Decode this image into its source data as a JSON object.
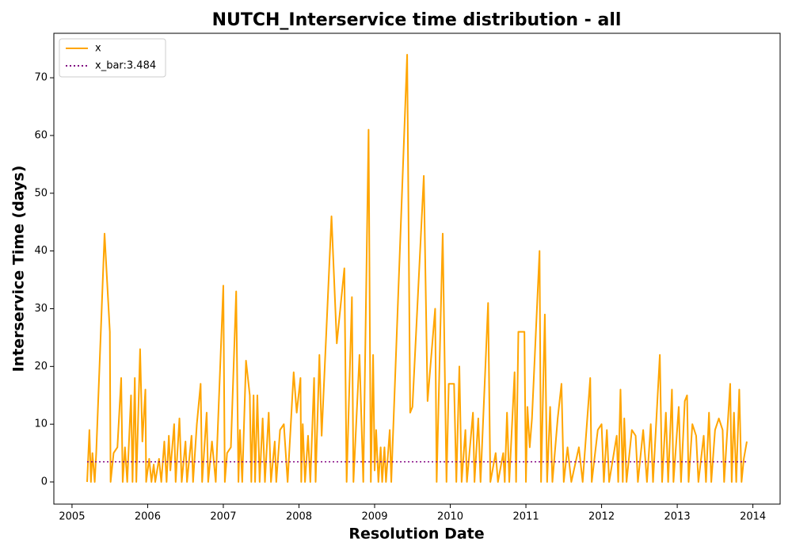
{
  "chart_data": {
    "type": "line",
    "title": "NUTCH_Interservice time distribution - all",
    "x_label": "Resolution Date",
    "y_label": "Interservice Time (days)",
    "xlim": [
      2004.76,
      2014.36
    ],
    "xticks": [
      2005,
      2006,
      2007,
      2008,
      2009,
      2010,
      2011,
      2012,
      2013,
      2014
    ],
    "ylim": [
      -3.84,
      77.7
    ],
    "yticks": [
      0,
      10,
      20,
      30,
      40,
      50,
      60,
      70
    ],
    "legend": "upper left",
    "grid": false,
    "series": [
      {
        "name": "x",
        "color": "orange",
        "style": "solid",
        "x": [
          2005.2,
          2005.23,
          2005.25,
          2005.27,
          2005.3,
          2005.32,
          2005.43,
          2005.5,
          2005.51,
          2005.55,
          2005.6,
          2005.65,
          2005.67,
          2005.7,
          2005.73,
          2005.75,
          2005.78,
          2005.8,
          2005.83,
          2005.85,
          2005.9,
          2005.93,
          2005.97,
          2005.98,
          2006.02,
          2006.05,
          2006.08,
          2006.1,
          2006.15,
          2006.18,
          2006.22,
          2006.25,
          2006.28,
          2006.3,
          2006.35,
          2006.37,
          2006.42,
          2006.45,
          2006.5,
          2006.52,
          2006.58,
          2006.6,
          2006.65,
          2006.7,
          2006.72,
          2006.78,
          2006.8,
          2006.85,
          2006.9,
          2007.0,
          2007.02,
          2007.05,
          2007.1,
          2007.17,
          2007.2,
          2007.22,
          2007.25,
          2007.3,
          2007.35,
          2007.37,
          2007.4,
          2007.42,
          2007.45,
          2007.48,
          2007.52,
          2007.55,
          2007.6,
          2007.63,
          2007.68,
          2007.7,
          2007.75,
          2007.8,
          2007.85,
          2007.93,
          2007.97,
          2008.02,
          2008.03,
          2008.05,
          2008.08,
          2008.12,
          2008.15,
          2008.2,
          2008.22,
          2008.27,
          2008.3,
          2008.43,
          2008.5,
          2008.6,
          2008.63,
          2008.7,
          2008.72,
          2008.8,
          2008.85,
          2008.92,
          2008.95,
          2008.98,
          2009.0,
          2009.02,
          2009.05,
          2009.08,
          2009.1,
          2009.13,
          2009.15,
          2009.2,
          2009.22,
          2009.43,
          2009.47,
          2009.5,
          2009.65,
          2009.7,
          2009.8,
          2009.82,
          2009.9,
          2009.95,
          2009.98,
          2010.05,
          2010.08,
          2010.12,
          2010.15,
          2010.2,
          2010.22,
          2010.3,
          2010.32,
          2010.37,
          2010.4,
          2010.5,
          2010.53,
          2010.6,
          2010.63,
          2010.7,
          2010.72,
          2010.75,
          2010.78,
          2010.85,
          2010.87,
          2010.9,
          2010.98,
          2011.0,
          2011.02,
          2011.05,
          2011.08,
          2011.18,
          2011.2,
          2011.25,
          2011.28,
          2011.32,
          2011.35,
          2011.42,
          2011.47,
          2011.5,
          2011.55,
          2011.6,
          2011.7,
          2011.75,
          2011.85,
          2011.87,
          2011.95,
          2012.0,
          2012.03,
          2012.07,
          2012.1,
          2012.2,
          2012.22,
          2012.25,
          2012.28,
          2012.3,
          2012.33,
          2012.4,
          2012.45,
          2012.48,
          2012.55,
          2012.6,
          2012.65,
          2012.68,
          2012.77,
          2012.8,
          2012.85,
          2012.88,
          2012.93,
          2012.95,
          2013.02,
          2013.05,
          2013.1,
          2013.13,
          2013.15,
          2013.2,
          2013.25,
          2013.28,
          2013.35,
          2013.38,
          2013.42,
          2013.45,
          2013.5,
          2013.55,
          2013.6,
          2013.62,
          2013.7,
          2013.72,
          2013.75,
          2013.78,
          2013.82,
          2013.85,
          2013.88,
          2013.92
        ],
        "values": [
          0,
          9,
          0,
          5,
          0,
          5,
          43,
          26,
          0,
          5,
          6,
          18,
          0,
          6,
          0,
          6,
          15,
          0,
          18,
          0,
          23,
          7,
          16,
          0,
          4,
          0,
          3,
          0,
          4,
          0,
          7,
          0,
          8,
          2,
          10,
          0,
          11,
          0,
          7,
          0,
          8,
          0,
          10,
          17,
          0,
          12,
          0,
          7,
          0,
          34,
          0,
          5,
          6,
          33,
          0,
          9,
          0,
          21,
          15,
          0,
          15,
          0,
          15,
          0,
          11,
          0,
          12,
          0,
          7,
          0,
          9,
          10,
          0,
          19,
          12,
          18,
          0,
          10,
          0,
          8,
          0,
          18,
          0,
          22,
          8,
          46,
          24,
          37,
          0,
          32,
          0,
          22,
          0,
          61,
          0,
          22,
          2,
          9,
          0,
          6,
          0,
          6,
          0,
          9,
          0,
          74,
          12,
          13,
          53,
          14,
          30,
          0,
          43,
          0,
          17,
          17,
          0,
          20,
          0,
          9,
          0,
          12,
          0,
          11,
          0,
          31,
          0,
          5,
          0,
          5,
          0,
          12,
          0,
          19,
          0,
          26,
          26,
          0,
          13,
          6,
          11,
          40,
          0,
          29,
          0,
          13,
          0,
          11,
          17,
          0,
          6,
          0,
          6,
          0,
          18,
          0,
          9,
          10,
          0,
          9,
          0,
          8,
          0,
          16,
          0,
          11,
          0,
          9,
          8,
          0,
          9,
          0,
          10,
          0,
          22,
          0,
          12,
          0,
          16,
          0,
          13,
          0,
          14,
          15,
          0,
          10,
          8,
          0,
          8,
          0,
          12,
          0,
          9,
          11,
          9,
          0,
          17,
          0,
          12,
          0,
          16,
          0,
          4,
          7
        ]
      },
      {
        "name": "x_bar:3.484",
        "color": "purple",
        "style": "dotted",
        "x": [
          2005.2,
          2013.92
        ],
        "values": [
          3.484,
          3.484
        ]
      }
    ]
  }
}
